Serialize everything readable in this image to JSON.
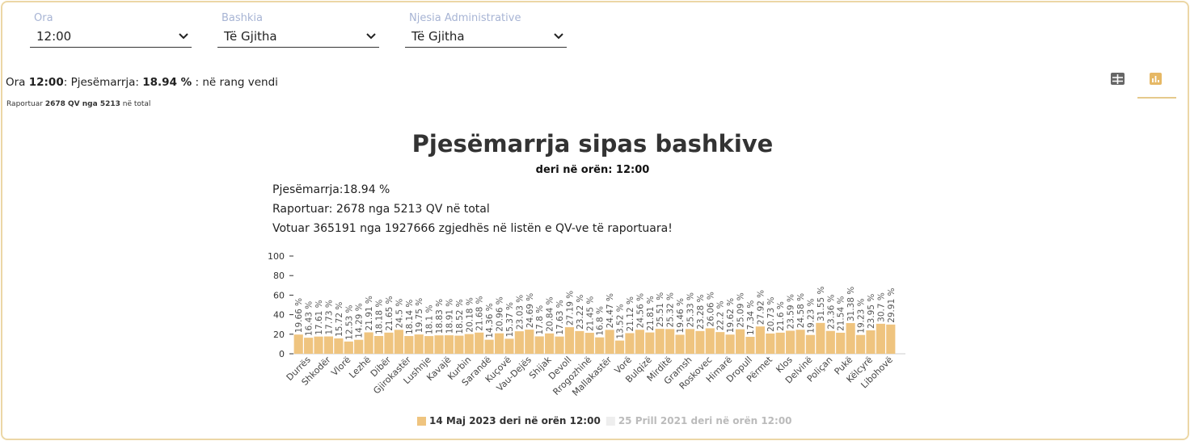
{
  "filters": [
    {
      "label": "Ora",
      "value": "12:00"
    },
    {
      "label": "Bashkia",
      "value": "Të Gjitha"
    },
    {
      "label": "Njesia Administrative",
      "value": "Të Gjitha"
    }
  ],
  "summary": {
    "ora_label": "Ora",
    "ora": "12:00",
    "pjes_label": ": Pjesëmarrja:",
    "pjes": "18.94 %",
    "suffix": ": në rang vendi",
    "rap_label": "Raportuar",
    "rap": "2678 QV nga 5213",
    "rap_suffix": "në total"
  },
  "chart_data": {
    "type": "bar",
    "title": "Pjesëmarrja sipas bashkive",
    "subtitle": "deri në orën: 12:00",
    "info": [
      "Pjesëmarrja:18.94 %",
      "Raportuar: 2678 nga 5213 QV në total",
      "Votuar 365191 nga 1927666 zgjedhës në listën e QV-ve të raportuara!"
    ],
    "categories": [
      null,
      "Durrës",
      null,
      "Shkodër",
      null,
      "Vlorë",
      null,
      "Lezhë",
      null,
      "Dibër",
      null,
      "Gjirokastër",
      null,
      "Lushnje",
      null,
      "Kavajë",
      null,
      "Kurbin",
      null,
      "Sarandë",
      null,
      "Kuçovë",
      null,
      "Vau-Dejës",
      null,
      "Shijak",
      null,
      "Devoll",
      null,
      "Rrogozhinë",
      null,
      "Mallakastër",
      null,
      "Vorë",
      null,
      "Bulqizë",
      null,
      "Mirditë",
      null,
      "Gramsh",
      null,
      "Roskovec",
      null,
      "Himarë",
      null,
      "Dropull",
      null,
      "Përmet",
      null,
      "Klos",
      null,
      "Delvinë",
      null,
      "Poliçan",
      null,
      "Pukë",
      null,
      "Këlcyrë",
      null,
      "Libohovë"
    ],
    "series": [
      {
        "name": "14 Maj 2023 deri në orën 12:00",
        "color": "#efc47f",
        "values": [
          19.66,
          16.43,
          17.61,
          17.73,
          15.72,
          12.53,
          14.29,
          21.91,
          18.18,
          21.65,
          24.5,
          18.14,
          19.75,
          18.1,
          18.83,
          18.91,
          18.52,
          20.18,
          21.68,
          14.36,
          20.96,
          15.37,
          23.03,
          24.69,
          17.8,
          20.84,
          17.63,
          27.19,
          23.22,
          21.45,
          16.8,
          24.47,
          13.52,
          21.12,
          24.56,
          21.81,
          25.51,
          25.32,
          19.46,
          25.33,
          23.28,
          26.06,
          22.2,
          19.62,
          25.09,
          17.34,
          27.92,
          20.73,
          21.6,
          23.59,
          24.58,
          19.23,
          31.55,
          23.36,
          21.54,
          31.38,
          19.23,
          23.95,
          30.7,
          29.91
        ],
        "value_labels": [
          "19.66 %",
          "16.43 %",
          "17.61 %",
          "17.73 %",
          "15.72 %",
          "12.53 %",
          "14.29 %",
          "21.91 %",
          "18.18 %",
          "21.65 %",
          "24.5 %",
          "18.14 %",
          "19.75 %",
          "18.1 %",
          "18.83 %",
          "18.91 %",
          "18.52 %",
          "20.18 %",
          "21.68 %",
          "14.36 %",
          "20.96 %",
          "15.37 %",
          "23.03 %",
          "24.69 %",
          "17.8 %",
          "20.84 %",
          "17.63 %",
          "27.19 %",
          "23.22 %",
          "21.45 %",
          "16.8 %",
          "24.47 %",
          "13.52 %",
          "21.12 %",
          "24.56 %",
          "21.81 %",
          "25.51 %",
          "25.32 %",
          "19.46 %",
          "25.33 %",
          "23.28 %",
          "26.06 %",
          "22.2 %",
          "19.62 %",
          "25.09 %",
          "17.34 %",
          "27.92 %",
          "20.73 %",
          "21.6 %",
          "23.59 %",
          "24.58 %",
          "19.23 %",
          "31.55 %",
          "23.36 %",
          "21.54 %",
          "31.38 %",
          "19.23 %",
          "23.95 %",
          "30.7 %",
          "29.91 %"
        ]
      },
      {
        "name": "25 Prill 2021 deri në orën 12:00",
        "color": "#eeeeee"
      }
    ],
    "ylim": [
      0,
      100
    ],
    "yticks": [
      0,
      20,
      40,
      60,
      80,
      100
    ]
  }
}
